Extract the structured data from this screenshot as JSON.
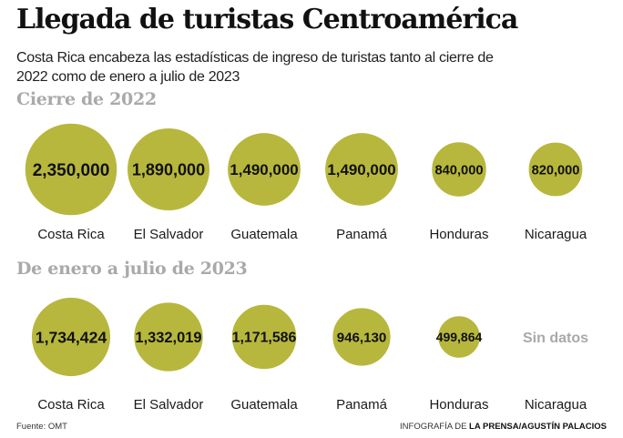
{
  "title": "Llegada de turistas Centroamérica",
  "subtitle": "Costa Rica encabeza las estadísticas de ingreso de turistas tanto al cierre de 2022 como de enero a julio de 2023",
  "colors": {
    "bubble": "#b7b73d",
    "bubble_stroke": "#ffffff",
    "missing_text": "#a9a9a9",
    "section_title": "#a9a9a9"
  },
  "chart_data": [
    {
      "type": "bubble",
      "title": "Cierre de 2022",
      "categories": [
        "Costa Rica",
        "El Salvador",
        "Guatemala",
        "Panamá",
        "Honduras",
        "Nicaragua"
      ],
      "values": [
        2350000,
        1890000,
        1490000,
        1490000,
        840000,
        820000
      ],
      "value_labels": [
        "2,350,000",
        "1,890,000",
        "1,490,000",
        "1,490,000",
        "840,000",
        "820,000"
      ]
    },
    {
      "type": "bubble",
      "title": "De enero a julio de 2023",
      "categories": [
        "Costa Rica",
        "El Salvador",
        "Guatemala",
        "Panamá",
        "Honduras",
        "Nicaragua"
      ],
      "values": [
        1734424,
        1332019,
        1171586,
        946130,
        499864,
        null
      ],
      "value_labels": [
        "1,734,424",
        "1,332,019",
        "1,171,586",
        "946,130",
        "499,864",
        "Sin datos"
      ]
    }
  ],
  "footer": {
    "source": "Fuente: OMT",
    "credit_prefix": "INFOGRAFÍA DE ",
    "credit_name": "LA PRENSA/AGUSTÍN PALACIOS"
  }
}
